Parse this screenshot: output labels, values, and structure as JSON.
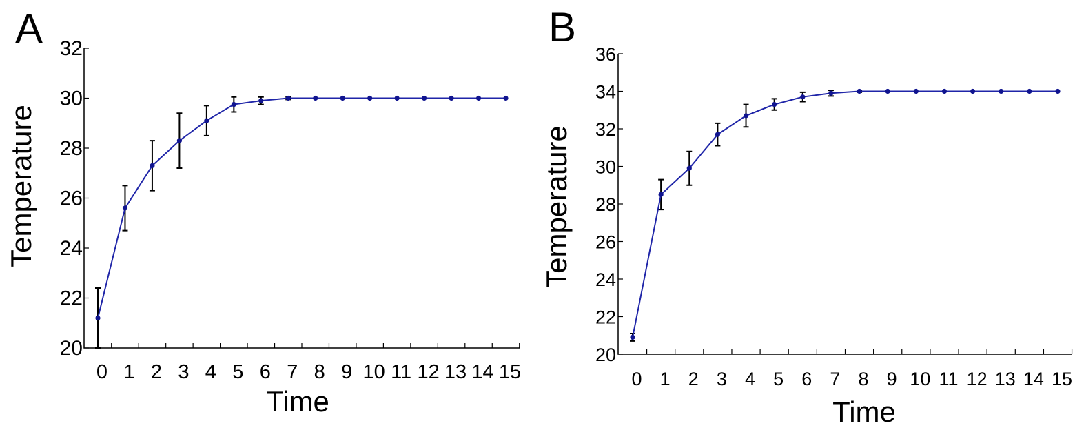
{
  "colors": {
    "series": "#1f25a8",
    "marker": "#10148f",
    "axis": "#000000"
  },
  "chart_data": [
    {
      "panel": "A",
      "type": "line",
      "xlabel": "Time",
      "ylabel": "Temperature",
      "x": [
        0,
        1,
        2,
        3,
        4,
        5,
        6,
        7,
        8,
        9,
        10,
        11,
        12,
        13,
        14,
        15
      ],
      "xlim": [
        0,
        15
      ],
      "ylim": [
        20,
        32
      ],
      "yticks": [
        20,
        22,
        24,
        26,
        28,
        30,
        32
      ],
      "series": [
        {
          "values": [
            21.2,
            25.6,
            27.3,
            28.3,
            29.1,
            29.75,
            29.9,
            30.0,
            30.0,
            30.0,
            30.0,
            30.0,
            30.0,
            30.0,
            30.0,
            30.0
          ],
          "errors": [
            1.2,
            0.9,
            1.0,
            1.1,
            0.6,
            0.3,
            0.15,
            0.05,
            0,
            0,
            0,
            0,
            0,
            0,
            0,
            0
          ]
        }
      ],
      "grid": false,
      "legend": "none"
    },
    {
      "panel": "B",
      "type": "line",
      "xlabel": "Time",
      "ylabel": "Temperature",
      "x": [
        0,
        1,
        2,
        3,
        4,
        5,
        6,
        7,
        8,
        9,
        10,
        11,
        12,
        13,
        14,
        15
      ],
      "xlim": [
        0,
        15
      ],
      "ylim": [
        20,
        36
      ],
      "yticks": [
        20,
        22,
        24,
        26,
        28,
        30,
        32,
        34,
        36
      ],
      "series": [
        {
          "values": [
            20.9,
            28.5,
            29.9,
            31.7,
            32.7,
            33.3,
            33.7,
            33.9,
            34.0,
            34.0,
            34.0,
            34.0,
            34.0,
            34.0,
            34.0,
            34.0
          ],
          "errors": [
            0.2,
            0.8,
            0.9,
            0.6,
            0.6,
            0.3,
            0.25,
            0.15,
            0.05,
            0,
            0,
            0,
            0,
            0,
            0,
            0
          ]
        }
      ],
      "grid": false,
      "legend": "none"
    }
  ]
}
